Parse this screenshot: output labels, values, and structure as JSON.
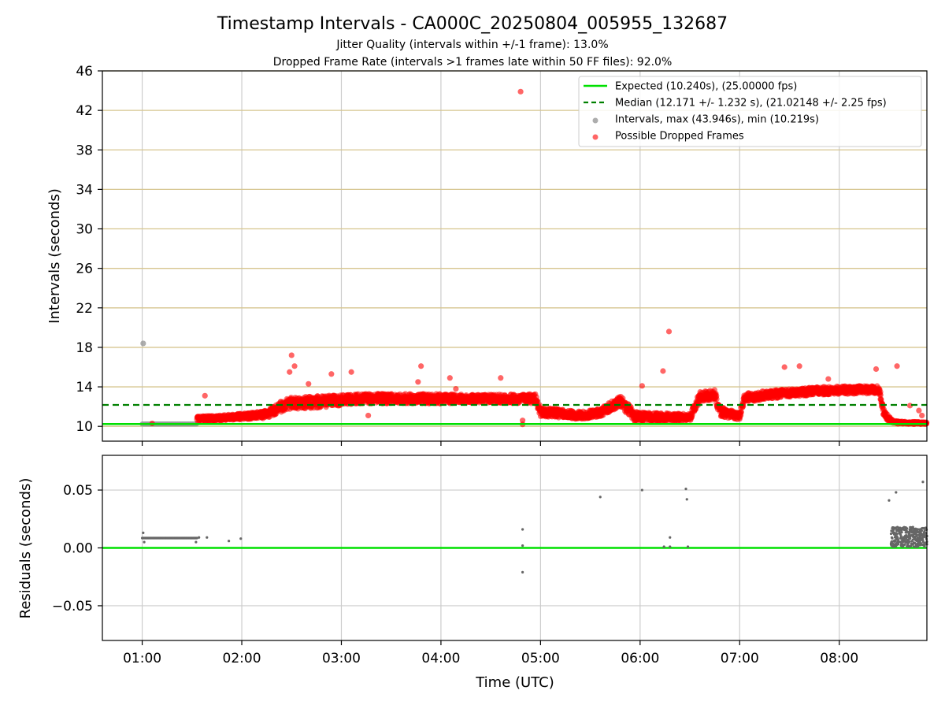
{
  "chart_data": {
    "type": "scatter",
    "title": "Timestamp Intervals - CA000C_20250804_005955_132687",
    "subtitle_lines": [
      "Jitter Quality (intervals within +/-1 frame): 13.0%",
      "Dropped Frame Rate (intervals >1 frames late within 50 FF files): 92.0%"
    ],
    "xlabel": "Time (UTC)",
    "x_ticks": [
      "01:00",
      "02:00",
      "03:00",
      "04:00",
      "05:00",
      "06:00",
      "07:00",
      "08:00"
    ],
    "x_range_hours": [
      0.6,
      8.88
    ],
    "top_panel": {
      "ylabel": "Intervals (seconds)",
      "ylim": [
        8.5,
        46
      ],
      "y_ticks": [
        10,
        14,
        18,
        22,
        26,
        30,
        34,
        38,
        42,
        46
      ],
      "grid": "horizontal and vertical",
      "legend_placement": "top-right",
      "legend": [
        "Expected (10.240s), (25.00000 fps)",
        "Median (12.171 +/- 1.232 s), (21.02148 +/- 2.25 fps)",
        "Intervals, max (43.946s), min (10.219s)",
        "Possible Dropped Frames"
      ],
      "expected_interval": 10.24,
      "median_interval": 12.171,
      "max_interval": 43.946,
      "min_interval": 10.219,
      "normal_intervals": {
        "value": 10.24,
        "x_hours_range": [
          1.0,
          1.55
        ],
        "outlier_points": [
          {
            "x": 1.01,
            "y": 18.4
          }
        ]
      },
      "dropped_profile": [
        {
          "x": 1.55,
          "y": 10.7,
          "spread": 0.3
        },
        {
          "x": 2.0,
          "y": 11.0,
          "spread": 0.3
        },
        {
          "x": 2.25,
          "y": 11.2,
          "spread": 0.4
        },
        {
          "x": 2.45,
          "y": 12.3,
          "spread": 0.6
        },
        {
          "x": 2.8,
          "y": 12.5,
          "spread": 0.6
        },
        {
          "x": 3.2,
          "y": 12.8,
          "spread": 0.5
        },
        {
          "x": 3.6,
          "y": 12.8,
          "spread": 0.5
        },
        {
          "x": 4.0,
          "y": 12.8,
          "spread": 0.5
        },
        {
          "x": 4.4,
          "y": 12.8,
          "spread": 0.4
        },
        {
          "x": 4.95,
          "y": 12.8,
          "spread": 0.5
        },
        {
          "x": 5.0,
          "y": 11.5,
          "spread": 0.5
        },
        {
          "x": 5.4,
          "y": 11.1,
          "spread": 0.4
        },
        {
          "x": 5.6,
          "y": 11.4,
          "spread": 0.4
        },
        {
          "x": 5.8,
          "y": 12.6,
          "spread": 0.6
        },
        {
          "x": 5.95,
          "y": 11.0,
          "spread": 0.5
        },
        {
          "x": 6.35,
          "y": 10.9,
          "spread": 0.4
        },
        {
          "x": 6.5,
          "y": 10.9,
          "spread": 0.4
        },
        {
          "x": 6.6,
          "y": 13.0,
          "spread": 0.5
        },
        {
          "x": 6.75,
          "y": 13.2,
          "spread": 0.5
        },
        {
          "x": 6.8,
          "y": 11.5,
          "spread": 0.5
        },
        {
          "x": 7.0,
          "y": 11.0,
          "spread": 0.4
        },
        {
          "x": 7.05,
          "y": 12.9,
          "spread": 0.5
        },
        {
          "x": 7.4,
          "y": 13.3,
          "spread": 0.4
        },
        {
          "x": 7.8,
          "y": 13.6,
          "spread": 0.4
        },
        {
          "x": 8.2,
          "y": 13.7,
          "spread": 0.4
        },
        {
          "x": 8.4,
          "y": 13.7,
          "spread": 0.4
        },
        {
          "x": 8.45,
          "y": 11.2,
          "spread": 0.5
        },
        {
          "x": 8.55,
          "y": 10.4,
          "spread": 0.15
        },
        {
          "x": 8.88,
          "y": 10.3,
          "spread": 0.1
        }
      ],
      "dropped_outliers": [
        {
          "x": 1.1,
          "y": 10.3
        },
        {
          "x": 1.63,
          "y": 13.1
        },
        {
          "x": 2.48,
          "y": 15.5
        },
        {
          "x": 2.5,
          "y": 17.2
        },
        {
          "x": 2.53,
          "y": 16.1
        },
        {
          "x": 2.67,
          "y": 14.3
        },
        {
          "x": 2.9,
          "y": 15.3
        },
        {
          "x": 3.1,
          "y": 15.5
        },
        {
          "x": 3.27,
          "y": 11.1
        },
        {
          "x": 3.77,
          "y": 14.5
        },
        {
          "x": 3.8,
          "y": 16.1
        },
        {
          "x": 4.09,
          "y": 14.9
        },
        {
          "x": 4.15,
          "y": 13.8
        },
        {
          "x": 4.6,
          "y": 14.9
        },
        {
          "x": 4.8,
          "y": 43.9
        },
        {
          "x": 4.82,
          "y": 10.2
        },
        {
          "x": 4.82,
          "y": 10.6
        },
        {
          "x": 6.02,
          "y": 14.1
        },
        {
          "x": 6.23,
          "y": 15.6
        },
        {
          "x": 6.29,
          "y": 19.6
        },
        {
          "x": 7.45,
          "y": 16.0
        },
        {
          "x": 7.6,
          "y": 16.1
        },
        {
          "x": 7.89,
          "y": 14.8
        },
        {
          "x": 8.37,
          "y": 15.8
        },
        {
          "x": 8.58,
          "y": 16.1
        },
        {
          "x": 8.71,
          "y": 12.1
        },
        {
          "x": 8.8,
          "y": 11.6
        },
        {
          "x": 8.83,
          "y": 11.1
        }
      ]
    },
    "bottom_panel": {
      "ylabel": "Residuals (seconds)",
      "ylim": [
        -0.08,
        0.08
      ],
      "y_ticks": [
        -0.05,
        0.0,
        0.05
      ],
      "y_tick_labels": [
        "−0.05",
        "0.00",
        "0.05"
      ],
      "baseline": 0.0,
      "residual_band": {
        "x_hours_range": [
          1.0,
          1.55
        ],
        "value": 0.0085
      },
      "residual_points": [
        {
          "x": 1.01,
          "y": 0.013
        },
        {
          "x": 1.02,
          "y": 0.005
        },
        {
          "x": 1.54,
          "y": 0.005
        },
        {
          "x": 1.57,
          "y": 0.009
        },
        {
          "x": 1.65,
          "y": 0.009
        },
        {
          "x": 1.87,
          "y": 0.006
        },
        {
          "x": 1.99,
          "y": 0.008
        },
        {
          "x": 4.82,
          "y": 0.016
        },
        {
          "x": 4.82,
          "y": 0.002
        },
        {
          "x": 4.82,
          "y": -0.021
        },
        {
          "x": 5.6,
          "y": 0.044
        },
        {
          "x": 6.02,
          "y": 0.05
        },
        {
          "x": 6.24,
          "y": 0.001
        },
        {
          "x": 6.3,
          "y": 0.009
        },
        {
          "x": 6.3,
          "y": 0.001
        },
        {
          "x": 6.46,
          "y": 0.051
        },
        {
          "x": 6.47,
          "y": 0.042
        },
        {
          "x": 6.48,
          "y": 0.001
        },
        {
          "x": 8.5,
          "y": 0.041
        },
        {
          "x": 8.57,
          "y": 0.048
        },
        {
          "x": 8.84,
          "y": 0.057
        }
      ],
      "residual_cluster": {
        "x_hours_range": [
          8.52,
          8.88
        ],
        "y_range": [
          0.001,
          0.018
        ]
      }
    },
    "colors": {
      "expected": "#00e000",
      "median": "#008000",
      "intervals": "#999999",
      "dropped": "#ff0000",
      "residuals": "#666666",
      "hgrid_top": "#d6c58f",
      "grid": "#cccccc"
    }
  }
}
